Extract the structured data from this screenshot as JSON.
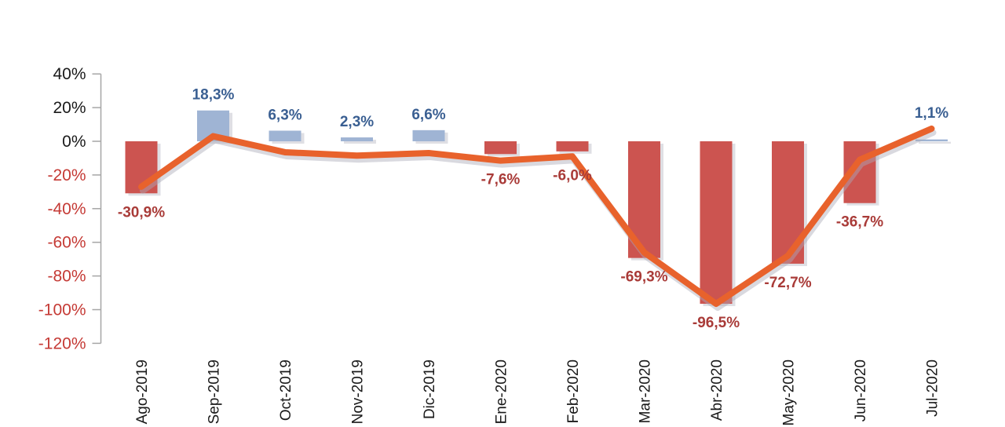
{
  "page": {
    "background": "#ffffff",
    "title": ""
  },
  "chart_data": {
    "type": "bar",
    "subtype": "combo-bar-with-line-overlay",
    "title": "",
    "xlabel": "",
    "ylabel": "",
    "grid": false,
    "legend_position": "none",
    "ylim": [
      -120,
      40
    ],
    "categories": [
      "Ago-2019",
      "Sep-2019",
      "Oct-2019",
      "Nov-2019",
      "Dic-2019",
      "Ene-2020",
      "Feb-2020",
      "Mar-2020",
      "Abr-2020",
      "May-2020",
      "Jun-2020",
      "Jul-2020"
    ],
    "series": [
      {
        "name": "monthly-variation-bars",
        "type": "bar",
        "values": [
          -30.9,
          18.3,
          6.3,
          2.3,
          6.6,
          -7.6,
          -6.0,
          -69.3,
          -96.5,
          -72.7,
          -36.7,
          1.1
        ],
        "data_labels": [
          "-30,9%",
          "18,3%",
          "6,3%",
          "2,3%",
          "6,6%",
          "-7,6%",
          "-6,0%",
          "-69,3%",
          "-96,5%",
          "-72,7%",
          "-36,7%",
          "1,1%"
        ]
      },
      {
        "name": "trend-line-overlay",
        "type": "line",
        "values_estimated": [
          -27,
          3,
          -6.5,
          -8.5,
          -7,
          -11.5,
          -9,
          -66,
          -96.5,
          -68,
          -11,
          7.5
        ],
        "data_labels": []
      }
    ],
    "y_axis": {
      "tick_labels": [
        "40%",
        "20%",
        "0%",
        "-20%",
        "-40%",
        "-60%",
        "-80%",
        "-100%",
        "-120%"
      ],
      "tick_values": [
        40,
        20,
        0,
        -20,
        -40,
        -60,
        -80,
        -100,
        -120
      ]
    },
    "colors": {
      "bar_positive": "#9FB4D4",
      "bar_negative": "#CC5450",
      "line": "#E8622C",
      "shadow": "#ABABB8",
      "label_positive": "#3A5F92",
      "label_negative": "#A93B38",
      "axis_tick_positive": "#1a1a1a",
      "axis_tick_negative": "#C53A35",
      "axis_line": "#A6A6A6",
      "background": "#FFFFFF"
    }
  }
}
